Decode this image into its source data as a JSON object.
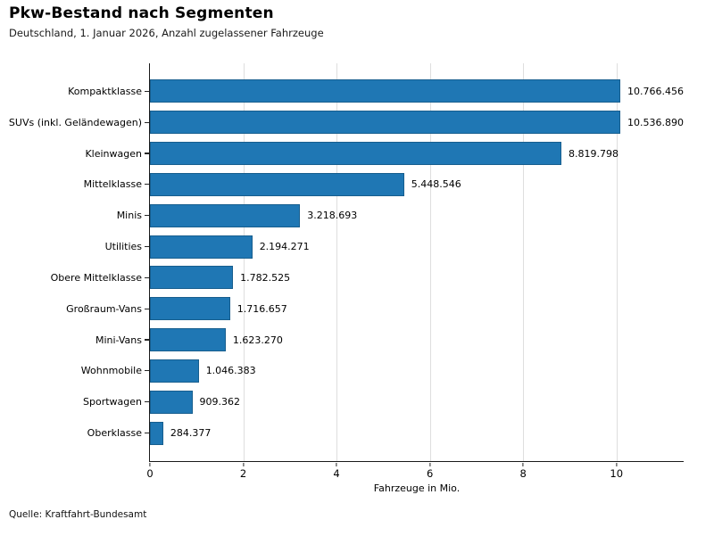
{
  "header": {
    "title": "Pkw-Bestand nach Segmenten",
    "subtitle": "Deutschland, 1. Januar 2026, Anzahl zugelassener Fahrzeuge"
  },
  "footer": {
    "source": "Quelle: Kraftfahrt-Bundesamt"
  },
  "chart_data": {
    "type": "bar",
    "orientation": "horizontal",
    "title": "Pkw-Bestand nach Segmenten",
    "subtitle": "Deutschland, 1. Januar 2026, Anzahl zugelassener Fahrzeuge",
    "xlabel": "Fahrzeuge in Mio.",
    "ylabel": "",
    "xlim": [
      0,
      11.44
    ],
    "xticks": [
      0,
      2,
      4,
      6,
      8,
      10
    ],
    "grid": "vertical-light",
    "legend": "none",
    "bar_color": "#1f77b4",
    "bar_edge_color": "#175e8e",
    "grid_color": "#dedede",
    "categories": [
      "Kompaktklasse",
      "SUVs (inkl. Geländewagen)",
      "Kleinwagen",
      "Mittelklasse",
      "Minis",
      "Utilities",
      "Obere Mittelklasse",
      "Großraum-Vans",
      "Mini-Vans",
      "Wohnmobile",
      "Sportwagen",
      "Oberklasse"
    ],
    "values": [
      10766456,
      10536890,
      8819798,
      5448546,
      3218693,
      2194271,
      1782525,
      1716657,
      1623270,
      1046383,
      909362,
      284377
    ],
    "values_mio": [
      10.766456,
      10.53689,
      8.819798,
      5.448546,
      3.218693,
      2.194271,
      1.782525,
      1.716657,
      1.62327,
      1.046383,
      0.909362,
      0.284377
    ],
    "value_labels": [
      "10.766.456",
      "10.536.890",
      "8.819.798",
      "5.448.546",
      "3.218.693",
      "2.194.271",
      "1.782.525",
      "1.716.657",
      "1.623.270",
      "1.046.383",
      "909.362",
      "284.377"
    ],
    "source": "Quelle: Kraftfahrt-Bundesamt"
  }
}
